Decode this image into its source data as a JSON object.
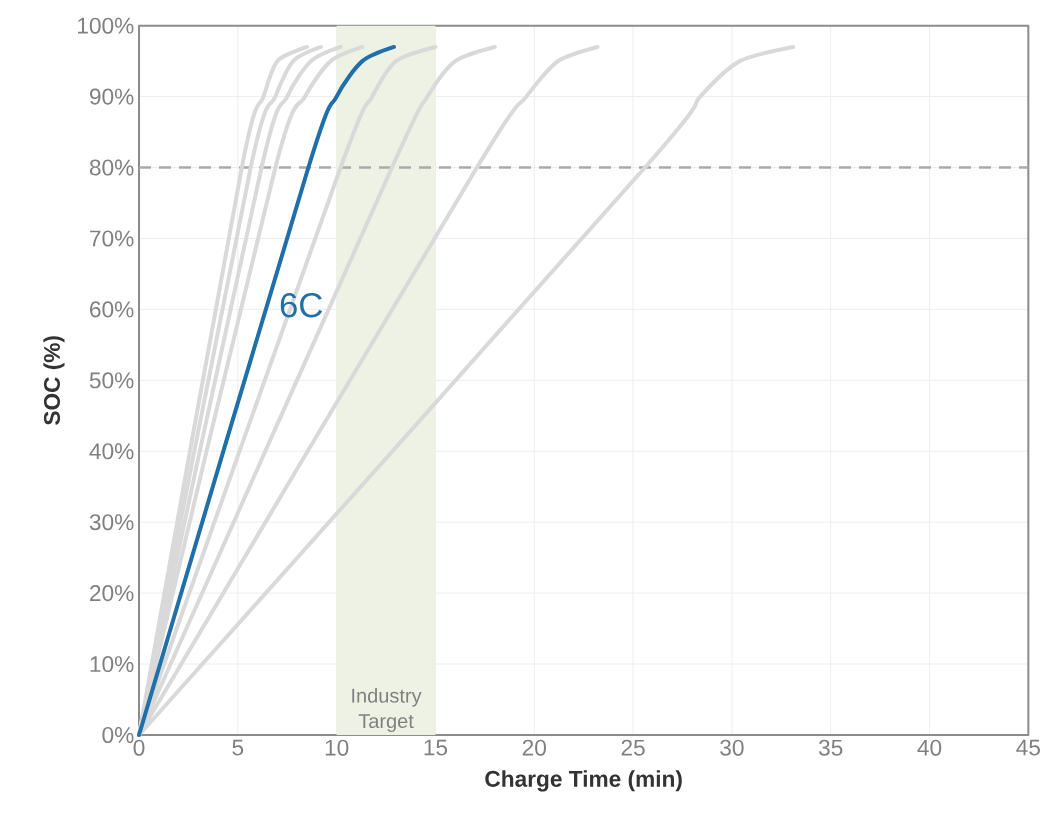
{
  "chart_data": {
    "type": "line",
    "xlabel": "Charge Time (min)",
    "ylabel": "SOC (%)",
    "xlim": [
      0,
      45
    ],
    "ylim": [
      0,
      100
    ],
    "xticks": [
      0,
      5,
      10,
      15,
      20,
      25,
      30,
      35,
      40,
      45
    ],
    "yticks": [
      {
        "value": 0,
        "label": "0%"
      },
      {
        "value": 10,
        "label": "10%"
      },
      {
        "value": 20,
        "label": "20%"
      },
      {
        "value": 30,
        "label": "30%"
      },
      {
        "value": 40,
        "label": "40%"
      },
      {
        "value": 50,
        "label": "50%"
      },
      {
        "value": 60,
        "label": "60%"
      },
      {
        "value": 70,
        "label": "70%"
      },
      {
        "value": 80,
        "label": "80%"
      },
      {
        "value": 90,
        "label": "90%"
      },
      {
        "value": 100,
        "label": "100%"
      }
    ],
    "grid": true,
    "legend": false,
    "marker": "none",
    "line_style": "solid",
    "ref_lines": [
      {
        "axis": "y",
        "value": 80,
        "label": null,
        "color": "#aaaaaa",
        "line_style": "dashed"
      }
    ],
    "bands": [
      {
        "axis": "x",
        "from": 10,
        "to": 15,
        "label": "Industry Target",
        "color": "#eef2e4"
      }
    ],
    "series": [
      {
        "color": "#d9d9d9",
        "x": [
          0,
          5.2,
          6.3,
          7.0,
          8.5
        ],
        "values": [
          0,
          80,
          90,
          95,
          97
        ]
      },
      {
        "color": "#d9d9d9",
        "x": [
          0,
          5.65,
          6.9,
          7.8,
          9.2
        ],
        "values": [
          0,
          80,
          90,
          95,
          97
        ]
      },
      {
        "color": "#d9d9d9",
        "x": [
          0,
          6.2,
          7.5,
          8.7,
          10.2
        ],
        "values": [
          0,
          80,
          90,
          95,
          97
        ]
      },
      {
        "color": "#d9d9d9",
        "x": [
          0,
          6.9,
          8.4,
          9.7,
          11.3
        ],
        "values": [
          0,
          80,
          90,
          95,
          97
        ]
      },
      {
        "color": "#d9d9d9",
        "x": [
          0,
          10.2,
          11.8,
          13.0,
          15.0
        ],
        "values": [
          0,
          80,
          90,
          95,
          97
        ]
      },
      {
        "color": "#d9d9d9",
        "x": [
          0,
          12.8,
          14.6,
          16.0,
          18.0
        ],
        "values": [
          0,
          80,
          90,
          95,
          97
        ]
      },
      {
        "color": "#d9d9d9",
        "x": [
          0,
          17.1,
          19.6,
          21.2,
          23.2
        ],
        "values": [
          0,
          80,
          90,
          95,
          97
        ]
      },
      {
        "color": "#d9d9d9",
        "x": [
          0,
          25.6,
          28.4,
          30.4,
          33.1
        ],
        "values": [
          0,
          80,
          90,
          95,
          97
        ]
      },
      {
        "name": "6C",
        "color": "#1f6fa8",
        "x": [
          0,
          8.57,
          10.0,
          11.3,
          12.9
        ],
        "values": [
          0,
          80,
          90,
          95,
          97
        ]
      }
    ]
  }
}
